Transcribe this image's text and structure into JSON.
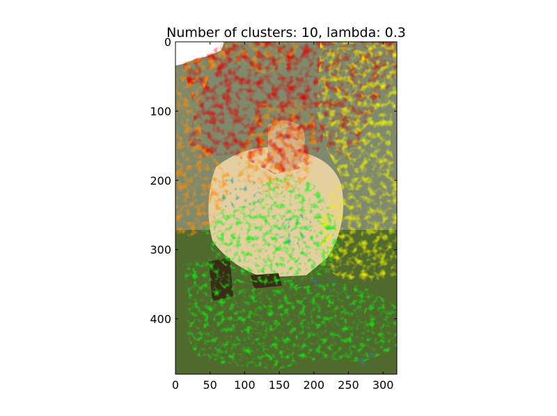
{
  "chart_data": {
    "type": "image",
    "title": "Number of clusters: 10, lambda: 0.3",
    "xlabel": "",
    "ylabel": "",
    "xlim": [
      0,
      320
    ],
    "ylim": [
      480,
      0
    ],
    "x_ticks": [
      0,
      50,
      100,
      150,
      200,
      250,
      300
    ],
    "x_tick_labels": [
      "0",
      "50",
      "100",
      "150",
      "200",
      "250",
      "300"
    ],
    "y_ticks": [
      0,
      100,
      200,
      300,
      400
    ],
    "y_tick_labels": [
      "0",
      "100",
      "200",
      "300",
      "400"
    ],
    "image_description_regions": [
      {
        "name": "red",
        "color": "#e00000"
      },
      {
        "name": "orange",
        "color": "#ff8c00"
      },
      {
        "name": "yellow",
        "color": "#f0f000"
      },
      {
        "name": "green",
        "color": "#11f011"
      },
      {
        "name": "teal",
        "color": "#10a090"
      },
      {
        "name": "blue",
        "color": "#2080c0"
      },
      {
        "name": "white",
        "color": "#ffffff"
      }
    ],
    "colors": {
      "background": "#5e6a3a",
      "grass": "#4f6a2c",
      "skin": "#e8d2a6",
      "shirt": "#e5cfa0",
      "dark": "#3a2a18",
      "grey": "#8a8f86"
    }
  }
}
